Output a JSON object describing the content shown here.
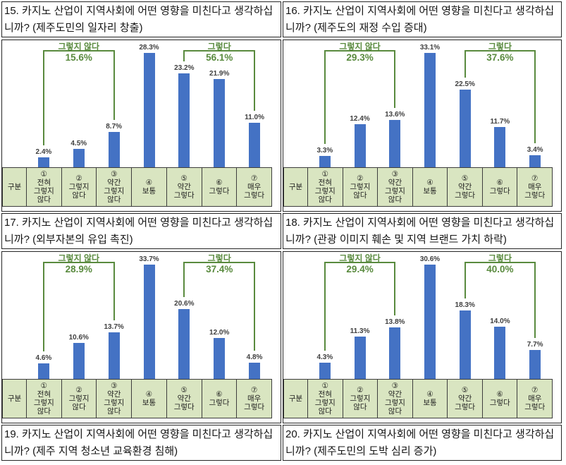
{
  "colors": {
    "bar": "#4472c4",
    "green": "#598a3e",
    "axis_bg": "#d9e5c1",
    "axis_border": "#3d3d3d",
    "box_border": "#262626",
    "value_label": "#404040",
    "page_bg": "#ffffff"
  },
  "axis_header": {
    "first_cell": "구분",
    "cells": [
      [
        "①",
        "전혀",
        "그렇지",
        "않다"
      ],
      [
        "②",
        "그렇지",
        "않다"
      ],
      [
        "③",
        "약간",
        "그렇지",
        "않다"
      ],
      [
        "④",
        "보통"
      ],
      [
        "⑤",
        "약간",
        "그렇다"
      ],
      [
        "⑥",
        "그렇다"
      ],
      [
        "⑦",
        "매우",
        "그렇다"
      ]
    ]
  },
  "chart_data": [
    {
      "type": "bar",
      "title": "15. 카지노 산업이 지역사회에 어떤 영향을 미친다고 생각하십니까? (제주도민의 일자리 창출)",
      "categories": [
        "① 전혀 그렇지 않다",
        "② 그렇지 않다",
        "③ 약간 그렇지 않다",
        "④ 보통",
        "⑤ 약간 그렇다",
        "⑥ 그렇다",
        "⑦ 매우 그렇다"
      ],
      "values": [
        2.4,
        4.5,
        8.7,
        28.3,
        23.2,
        21.9,
        11.0
      ],
      "value_labels": [
        "2.4%",
        "4.5%",
        "8.7%",
        "28.3%",
        "23.2%",
        "21.9%",
        "11.0%"
      ],
      "brackets": [
        {
          "label": "그렇지 않다",
          "value_label": "15.6%",
          "from_index": 0,
          "to_index": 2
        },
        {
          "label": "그렇다",
          "value_label": "56.1%",
          "from_index": 4,
          "to_index": 6
        }
      ],
      "ylim": [
        0,
        30
      ],
      "gridlines": false,
      "legend": false,
      "data_labels": true
    },
    {
      "type": "bar",
      "title": "16. 카지노 산업이 지역사회에 어떤 영향을 미친다고 생각하십니까? (제주도의 재정 수입 증대)",
      "categories": [
        "① 전혀 그렇지 않다",
        "② 그렇지 않다",
        "③ 약간 그렇지 않다",
        "④ 보통",
        "⑤ 약간 그렇다",
        "⑥ 그렇다",
        "⑦ 매우 그렇다"
      ],
      "values": [
        3.3,
        12.4,
        13.6,
        33.1,
        22.5,
        11.7,
        3.4
      ],
      "value_labels": [
        "3.3%",
        "12.4%",
        "13.6%",
        "33.1%",
        "22.5%",
        "11.7%",
        "3.4%"
      ],
      "brackets": [
        {
          "label": "그렇지 않다",
          "value_label": "29.3%",
          "from_index": 0,
          "to_index": 2
        },
        {
          "label": "그렇다",
          "value_label": "37.6%",
          "from_index": 4,
          "to_index": 6
        }
      ],
      "ylim": [
        0,
        35
      ],
      "gridlines": false,
      "legend": false,
      "data_labels": true
    },
    {
      "type": "bar",
      "title": "17. 카지노 산업이 지역사회에 어떤 영향을 미친다고 생각하십니까? (외부자본의 유입 촉진)",
      "categories": [
        "① 전혀 그렇지 않다",
        "② 그렇지 않다",
        "③ 약간 그렇지 않다",
        "④ 보통",
        "⑤ 약간 그렇다",
        "⑥ 그렇다",
        "⑦ 매우 그렇다"
      ],
      "values": [
        4.6,
        10.6,
        13.7,
        33.7,
        20.6,
        12.0,
        4.8
      ],
      "value_labels": [
        "4.6%",
        "10.6%",
        "13.7%",
        "33.7%",
        "20.6%",
        "12.0%",
        "4.8%"
      ],
      "brackets": [
        {
          "label": "그렇지 않다",
          "value_label": "28.9%",
          "from_index": 0,
          "to_index": 2
        },
        {
          "label": "그렇다",
          "value_label": "37.4%",
          "from_index": 4,
          "to_index": 6
        }
      ],
      "ylim": [
        0,
        35
      ],
      "gridlines": false,
      "legend": false,
      "data_labels": true
    },
    {
      "type": "bar",
      "title": "18. 카지노 산업이 지역사회에 어떤 영향을 미친다고 생각하십니까? (관광 이미지 훼손 및 지역 브랜드 가치 하락)",
      "categories": [
        "① 전혀 그렇지 않다",
        "② 그렇지 않다",
        "③ 약간 그렇지 않다",
        "④ 보통",
        "⑤ 약간 그렇다",
        "⑥ 그렇다",
        "⑦ 매우 그렇다"
      ],
      "values": [
        4.3,
        11.3,
        13.8,
        30.6,
        18.3,
        14.0,
        7.7
      ],
      "value_labels": [
        "4.3%",
        "11.3%",
        "13.8%",
        "30.6%",
        "18.3%",
        "14.0%",
        "7.7%"
      ],
      "brackets": [
        {
          "label": "그렇지 않다",
          "value_label": "29.4%",
          "from_index": 0,
          "to_index": 2
        },
        {
          "label": "그렇다",
          "value_label": "40.0%",
          "from_index": 4,
          "to_index": 6
        }
      ],
      "ylim": [
        0,
        32
      ],
      "gridlines": false,
      "legend": false,
      "data_labels": true
    }
  ],
  "pending_questions": [
    {
      "title": "19. 카지노 산업이 지역사회에 어떤 영향을 미친다고 생각하십니까? (제주 지역 청소년 교육환경 침해)"
    },
    {
      "title": "20. 카지노 산업이 지역사회에 어떤 영향을 미친다고 생각하십니까? (제주도민의 도박 심리 증가)"
    }
  ]
}
